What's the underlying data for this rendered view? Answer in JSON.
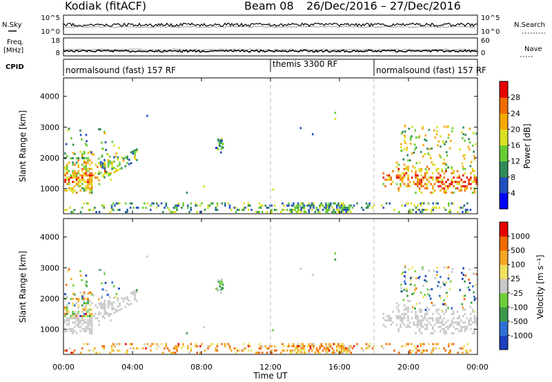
{
  "header": {
    "radar": "Kodiak (fitACF)",
    "beam": "Beam 08",
    "daterange": "26/Dec/2016 – 27/Dec/2016"
  },
  "left_labels": {
    "nsky": "N.Sky",
    "freq": "Freq.",
    "freq_unit": "[MHz]",
    "cpid": "CPID"
  },
  "right_labels": {
    "nsearch": "N.Search",
    "nave": "Nave"
  },
  "strip1": {
    "left_ticks": [
      "10^5",
      "10^0"
    ],
    "right_ticks": [
      "10^5",
      "10^0"
    ]
  },
  "strip2": {
    "left_ticks": [
      "18",
      "8"
    ],
    "right_ticks": [
      "60",
      "0"
    ]
  },
  "modes": [
    {
      "label": "normalsound (fast) 157 RF",
      "start": 0
    },
    {
      "label": "themis 3300 RF",
      "start": 12
    },
    {
      "label": "normalsound (fast) 157 RF",
      "start": 18
    }
  ],
  "chart_data": [
    {
      "type": "heatmap",
      "name": "power",
      "ylabel": "Slant Range [km]",
      "xlabel": "",
      "xlim": [
        0,
        24
      ],
      "ylim": [
        180,
        4600
      ],
      "yticks": [
        "1000",
        "2000",
        "3000",
        "4000"
      ],
      "xticks": [
        "00:00",
        "04:00",
        "08:00",
        "12:00",
        "16:00",
        "20:00",
        "00:00"
      ],
      "colorbar": {
        "label": "Power [dB]",
        "ticks": [
          "4",
          "8",
          "12",
          "16",
          "20",
          "24",
          "28"
        ],
        "colors": [
          "#0000ff",
          "#1f4fbf",
          "#2e8b57",
          "#66cc33",
          "#d9e021",
          "#f7a800",
          "#f26b00",
          "#e60000"
        ]
      }
    },
    {
      "type": "heatmap",
      "name": "velocity",
      "ylabel": "Slant Range [km]",
      "xlabel": "Time UT",
      "xlim": [
        0,
        24
      ],
      "ylim": [
        180,
        4600
      ],
      "yticks": [
        "1000",
        "2000",
        "3000",
        "4000"
      ],
      "xticks": [
        "00:00",
        "04:00",
        "08:00",
        "12:00",
        "16:00",
        "20:00",
        "00:00"
      ],
      "colorbar": {
        "label": "Velocity [m s⁻¹]",
        "ticks": [
          "1000",
          "500",
          "100",
          "25",
          "-25",
          "-100",
          "-500",
          "-1000"
        ],
        "colors": [
          "#1a3fbf",
          "#2f6fd6",
          "#3a9a4a",
          "#6fcf3a",
          "#c8c8c8",
          "#f0e060",
          "#f5a623",
          "#f06a00",
          "#e60000"
        ]
      }
    }
  ]
}
